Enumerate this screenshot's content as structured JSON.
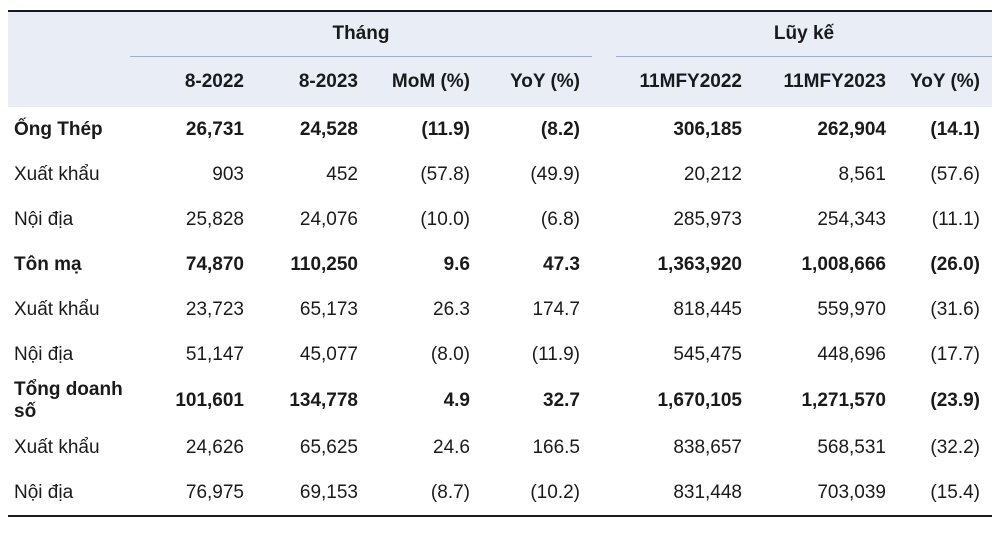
{
  "header": {
    "group_month": "Tháng",
    "group_cumulative": "Lũy kế",
    "columns": [
      "8-2022",
      "8-2023",
      "MoM (%)",
      "YoY (%)",
      "11MFY2022",
      "11MFY2023",
      "YoY (%)"
    ]
  },
  "rows": [
    {
      "label": "Ống Thép",
      "v": [
        "26,731",
        "24,528",
        "(11.9)",
        "(8.2)",
        "306,185",
        "262,904",
        "(14.1)"
      ]
    },
    {
      "label": "Xuất khẩu",
      "v": [
        "903",
        "452",
        "(57.8)",
        "(49.9)",
        "20,212",
        "8,561",
        "(57.6)"
      ]
    },
    {
      "label": "Nội địa",
      "v": [
        "25,828",
        "24,076",
        "(10.0)",
        "(6.8)",
        "285,973",
        "254,343",
        "(11.1)"
      ]
    },
    {
      "label": "Tôn mạ",
      "v": [
        "74,870",
        "110,250",
        "9.6",
        "47.3",
        "1,363,920",
        "1,008,666",
        "(26.0)"
      ]
    },
    {
      "label": "Xuất khẩu",
      "v": [
        "23,723",
        "65,173",
        "26.3",
        "174.7",
        "818,445",
        "559,970",
        "(31.6)"
      ]
    },
    {
      "label": "Nội địa",
      "v": [
        "51,147",
        "45,077",
        "(8.0)",
        "(11.9)",
        "545,475",
        "448,696",
        "(17.7)"
      ]
    },
    {
      "label": "Tổng doanh số",
      "v": [
        "101,601",
        "134,778",
        "4.9",
        "32.7",
        "1,670,105",
        "1,271,570",
        "(23.9)"
      ]
    },
    {
      "label": "Xuất khẩu",
      "v": [
        "24,626",
        "65,625",
        "24.6",
        "166.5",
        "838,657",
        "568,531",
        "(32.2)"
      ]
    },
    {
      "label": "Nội địa",
      "v": [
        "76,975",
        "69,153",
        "(8.7)",
        "(10.2)",
        "831,448",
        "703,039",
        "(15.4)"
      ]
    }
  ]
}
